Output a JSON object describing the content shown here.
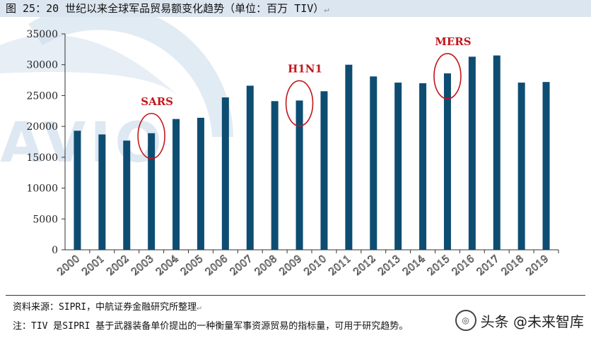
{
  "header": {
    "title": "图 25：20 世纪以来全球军品贸易额变化趋势（单位：百万 TIV）"
  },
  "colors": {
    "bar": "#0e4d72",
    "circle": "#c0171c",
    "event_label": "#c0171c",
    "title_bg": "#dce6f0",
    "watermark": "#c9daea"
  },
  "watermark": {
    "text": "AVIO"
  },
  "chart_data": {
    "type": "bar",
    "categories": [
      "2000",
      "2001",
      "2002",
      "2003",
      "2004",
      "2005",
      "2006",
      "2007",
      "2008",
      "2009",
      "2010",
      "2011",
      "2012",
      "2013",
      "2014",
      "2015",
      "2016",
      "2017",
      "2018",
      "2019"
    ],
    "values": [
      19300,
      18700,
      17700,
      18900,
      21200,
      21400,
      24700,
      26600,
      24100,
      24200,
      25700,
      30000,
      28100,
      27100,
      27000,
      28600,
      31300,
      31500,
      27100,
      27200
    ],
    "ylim": [
      0,
      35000
    ],
    "yticks": [
      "0",
      "5000",
      "10000",
      "15000",
      "20000",
      "25000",
      "30000",
      "35000"
    ],
    "title": "",
    "xlabel": "",
    "ylabel": "",
    "grid": false,
    "annotations": [
      {
        "label": "SARS",
        "category": "2003"
      },
      {
        "label": "H1N1",
        "category": "2009"
      },
      {
        "label": "MERS",
        "category": "2015"
      }
    ]
  },
  "footer": {
    "source": "资料来源：SIPRI，中航证券金融研究所整理",
    "note": "注：TIV 是SIPRI 基于武器装备单价提出的一种衡量军事资源贸易的指标量，可用于研究趋势。",
    "brand": "头条 @未来智库"
  }
}
